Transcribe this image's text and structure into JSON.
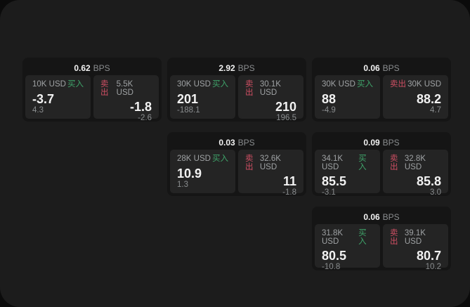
{
  "labels": {
    "bps_unit": "BPS",
    "buy": "买入",
    "sell": "卖出"
  },
  "colors": {
    "window_background": "#1c1c1c",
    "card_background": "#151515",
    "panel_background": "#242424",
    "buy_green": "#3fa46a",
    "sell_red": "#cf4f63"
  },
  "cards": [
    {
      "bps": "0.62",
      "buy": {
        "amount": "10K USD",
        "price": "-3.7",
        "change": "4.3"
      },
      "sell": {
        "amount": "5.5K USD",
        "price": "-1.8",
        "change": "-2.6"
      }
    },
    {
      "bps": "2.92",
      "buy": {
        "amount": "30K USD",
        "price": "201",
        "change": "-188.1"
      },
      "sell": {
        "amount": "30.1K USD",
        "price": "210",
        "change": "196.5"
      }
    },
    {
      "bps": "0.06",
      "buy": {
        "amount": "30K USD",
        "price": "88",
        "change": "-4.9"
      },
      "sell": {
        "amount": "30K USD",
        "price": "88.2",
        "change": "4.7"
      }
    },
    {
      "bps": "0.03",
      "buy": {
        "amount": "28K USD",
        "price": "10.9",
        "change": "1.3"
      },
      "sell": {
        "amount": "32.6K USD",
        "price": "11",
        "change": "-1.8"
      }
    },
    {
      "bps": "0.09",
      "buy": {
        "amount": "34.1K USD",
        "price": "85.5",
        "change": "-3.1"
      },
      "sell": {
        "amount": "32.8K USD",
        "price": "85.8",
        "change": "3.0"
      }
    },
    {
      "bps": "0.06",
      "buy": {
        "amount": "31.8K USD",
        "price": "80.5",
        "change": "-10.8"
      },
      "sell": {
        "amount": "39.1K USD",
        "price": "80.7",
        "change": "10.2"
      }
    }
  ]
}
